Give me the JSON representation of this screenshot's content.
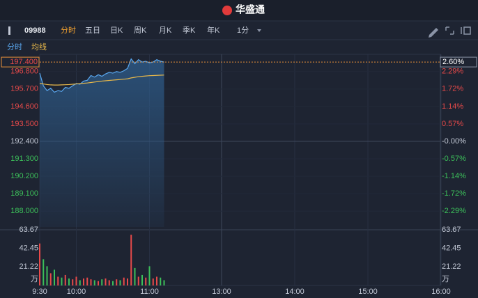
{
  "header": {
    "title": "华盛通"
  },
  "toolbar": {
    "code": "09988",
    "tabs": [
      "分时",
      "五日",
      "日K",
      "周K",
      "月K",
      "季K",
      "年K"
    ],
    "interval": "1分"
  },
  "chart_data": [
    {
      "type": "line",
      "x": [
        "9:30",
        "9:33",
        "9:36",
        "9:39",
        "9:42",
        "9:45",
        "9:48",
        "9:51",
        "9:54",
        "9:57",
        "10:00",
        "10:03",
        "10:06",
        "10:09",
        "10:12",
        "10:15",
        "10:18",
        "10:21",
        "10:24",
        "10:27",
        "10:30",
        "10:33",
        "10:36",
        "10:39",
        "10:42",
        "10:45",
        "10:48",
        "10:51",
        "10:54",
        "10:57",
        "11:00",
        "11:03",
        "11:06",
        "11:09",
        "11:12"
      ],
      "series": [
        {
          "name": "分时",
          "color": "#5aa8f0",
          "values": [
            196.7,
            195.9,
            195.6,
            195.75,
            195.5,
            195.6,
            195.55,
            195.8,
            195.75,
            195.9,
            196.05,
            196.0,
            196.2,
            196.25,
            196.55,
            196.45,
            196.6,
            196.5,
            196.65,
            196.75,
            196.7,
            196.8,
            196.75,
            196.85,
            197.0,
            197.6,
            197.3,
            197.55,
            197.4,
            197.45,
            197.35,
            197.4,
            197.55,
            197.45,
            197.4
          ]
        },
        {
          "name": "均线",
          "color": "#e8b84a",
          "values": [
            196.05,
            196.02,
            195.98,
            195.96,
            195.95,
            195.95,
            195.96,
            195.97,
            195.98,
            196.0,
            196.02,
            196.04,
            196.06,
            196.08,
            196.11,
            196.14,
            196.17,
            196.2,
            196.22,
            196.24,
            196.26,
            196.28,
            196.3,
            196.32,
            196.34,
            196.4,
            196.44,
            196.48,
            196.5,
            196.52,
            196.54,
            196.55,
            196.56,
            196.57,
            196.58
          ]
        }
      ],
      "ylim": [
        187.0,
        197.8
      ],
      "yticks": [
        {
          "value": 196.8,
          "label": "196.800"
        },
        {
          "value": 195.7,
          "label": "195.700"
        },
        {
          "value": 194.6,
          "label": "194.600"
        },
        {
          "value": 193.5,
          "label": "193.500"
        },
        {
          "value": 192.4,
          "label": "192.400"
        },
        {
          "value": 191.3,
          "label": "191.300"
        },
        {
          "value": 190.2,
          "label": "190.200"
        },
        {
          "value": 189.1,
          "label": "189.100"
        },
        {
          "value": 188.0,
          "label": "188.000"
        }
      ],
      "y2lim": [
        -2.81,
        2.81
      ],
      "y2ticks": [
        {
          "value": 2.29,
          "label": "2.29%"
        },
        {
          "value": 1.72,
          "label": "1.72%"
        },
        {
          "value": 1.14,
          "label": "1.14%"
        },
        {
          "value": 0.57,
          "label": "0.57%"
        },
        {
          "value": 0,
          "label": "-0.00%"
        },
        {
          "value": -0.57,
          "label": "-0.57%"
        },
        {
          "value": -1.14,
          "label": "-1.14%"
        },
        {
          "value": -1.72,
          "label": "-1.72%"
        },
        {
          "value": -2.29,
          "label": "-2.29%"
        }
      ],
      "last_price": {
        "value": 197.4,
        "label": "197.400"
      },
      "last_change": {
        "value": 2.6,
        "label": "2.60%"
      }
    },
    {
      "type": "bar",
      "x": [
        "9:30",
        "9:33",
        "9:36",
        "9:39",
        "9:42",
        "9:45",
        "9:48",
        "9:51",
        "9:54",
        "9:57",
        "10:00",
        "10:03",
        "10:06",
        "10:09",
        "10:12",
        "10:15",
        "10:18",
        "10:21",
        "10:24",
        "10:27",
        "10:30",
        "10:33",
        "10:36",
        "10:39",
        "10:42",
        "10:45",
        "10:48",
        "10:51",
        "10:54",
        "10:57",
        "11:00",
        "11:03",
        "11:06",
        "11:09",
        "11:12"
      ],
      "values": [
        48,
        30,
        22,
        14,
        18,
        10,
        9,
        12,
        8,
        7,
        10,
        6,
        8,
        9,
        7,
        6,
        5,
        7,
        8,
        6,
        5,
        7,
        6,
        9,
        8,
        58,
        20,
        10,
        12,
        9,
        22,
        8,
        10,
        9,
        6
      ],
      "colors": [
        "#e84a4a",
        "#3cbf5a",
        "#3cbf5a",
        "#e84a4a",
        "#3cbf5a",
        "#e84a4a",
        "#3cbf5a",
        "#e84a4a",
        "#3cbf5a",
        "#e84a4a",
        "#e84a4a",
        "#3cbf5a",
        "#e84a4a",
        "#e84a4a",
        "#e84a4a",
        "#3cbf5a",
        "#e84a4a",
        "#3cbf5a",
        "#e84a4a",
        "#e84a4a",
        "#3cbf5a",
        "#e84a4a",
        "#3cbf5a",
        "#e84a4a",
        "#e84a4a",
        "#e84a4a",
        "#3cbf5a",
        "#e84a4a",
        "#3cbf5a",
        "#e84a4a",
        "#3cbf5a",
        "#e84a4a",
        "#e84a4a",
        "#3cbf5a",
        "#3cbf5a"
      ],
      "ylim": [
        0,
        63.67
      ],
      "yticks": [
        63.67,
        42.45,
        21.22
      ],
      "unit": "万",
      "xticks": [
        "9:30",
        "10:00",
        "11:00",
        "13:00",
        "14:00",
        "15:00",
        "16:00"
      ]
    }
  ]
}
